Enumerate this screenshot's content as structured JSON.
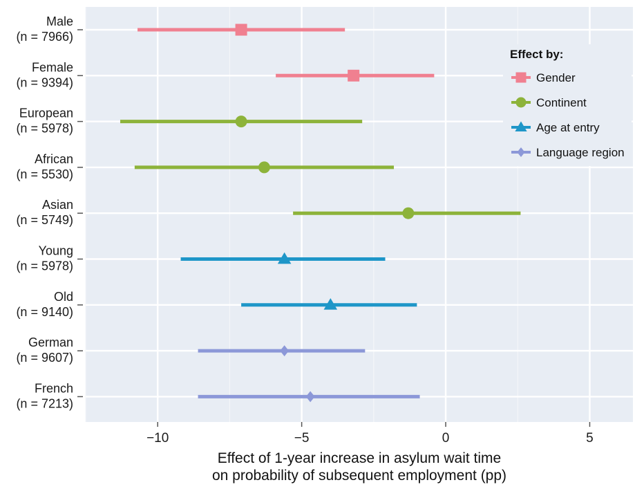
{
  "chart_data": {
    "type": "dot-whisker",
    "title": "",
    "xlabel": "Effect of 1-year increase in asylum wait time",
    "xlabel_line2": "on probability of subsequent employment (pp)",
    "ylabel": "",
    "xlim": [
      -12.5,
      6.5
    ],
    "xticks": [
      -10,
      -5,
      0,
      5
    ],
    "xtick_labels": [
      "−10",
      "−5",
      "0",
      "5"
    ],
    "grid": true,
    "legend": {
      "title": "Effect by:",
      "placement": "top-right"
    },
    "series": [
      {
        "name": "Gender",
        "color": "#f08090",
        "marker": "square",
        "points": [
          {
            "label": "Male",
            "n_label": "(n = 7966)",
            "estimate": -7.1,
            "lower": -10.7,
            "upper": -3.5
          },
          {
            "label": "Female",
            "n_label": "(n = 9394)",
            "estimate": -3.2,
            "lower": -5.9,
            "upper": -0.4
          }
        ]
      },
      {
        "name": "Continent",
        "color": "#8db33a",
        "marker": "circle",
        "points": [
          {
            "label": "European",
            "n_label": "(n = 5978)",
            "estimate": -7.1,
            "lower": -11.3,
            "upper": -2.9
          },
          {
            "label": "African",
            "n_label": "(n = 5530)",
            "estimate": -6.3,
            "lower": -10.8,
            "upper": -1.8
          },
          {
            "label": "Asian",
            "n_label": "(n = 5749)",
            "estimate": -1.3,
            "lower": -5.3,
            "upper": 2.6
          }
        ]
      },
      {
        "name": "Age at entry",
        "color": "#1e96c8",
        "marker": "triangle",
        "points": [
          {
            "label": "Young",
            "n_label": "(n = 5978)",
            "estimate": -5.6,
            "lower": -9.2,
            "upper": -2.1
          },
          {
            "label": "Old",
            "n_label": "(n = 9140)",
            "estimate": -4.0,
            "lower": -7.1,
            "upper": -1.0
          }
        ]
      },
      {
        "name": "Language region",
        "color": "#8c98d8",
        "marker": "diamond",
        "points": [
          {
            "label": "German",
            "n_label": "(n = 9607)",
            "estimate": -5.6,
            "lower": -8.6,
            "upper": -2.8
          },
          {
            "label": "French",
            "n_label": "(n = 7213)",
            "estimate": -4.7,
            "lower": -8.6,
            "upper": -0.9
          }
        ]
      }
    ]
  }
}
